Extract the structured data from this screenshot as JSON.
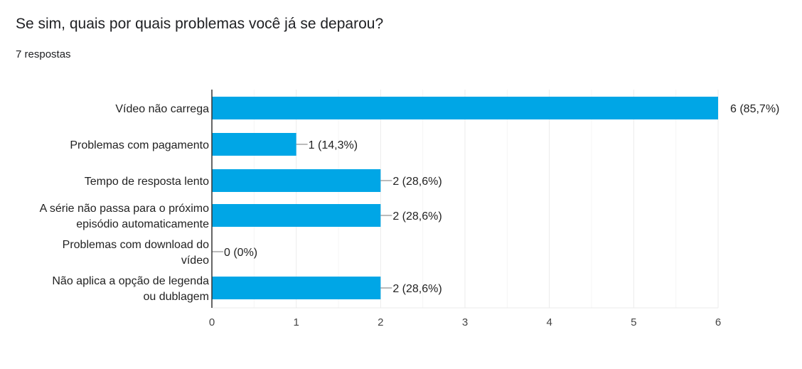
{
  "question": {
    "title": "Se sim, quais por quais problemas você já se deparou?",
    "responses": "7 respostas"
  },
  "colors": {
    "bar": "#00a6e6",
    "grid": "#ebebeb",
    "axis": "#333333",
    "leader": "#777777"
  },
  "chart_data": {
    "type": "bar",
    "orientation": "horizontal",
    "categories": [
      [
        "Vídeo não carrega"
      ],
      [
        "Problemas com pagamento"
      ],
      [
        "Tempo de resposta lento"
      ],
      [
        "A série não passa para o próximo",
        "episódio automaticamente"
      ],
      [
        "Problemas com download do",
        "vídeo"
      ],
      [
        "Não aplica a opção de legenda",
        "ou dublagem"
      ]
    ],
    "values": [
      6,
      1,
      2,
      2,
      0,
      2
    ],
    "data_labels": [
      "6 (85,7%)",
      "1 (14,3%)",
      "2 (28,6%)",
      "2 (28,6%)",
      "0 (0%)",
      "2 (28,6%)"
    ],
    "xlim": [
      0,
      6
    ],
    "xticks": [
      "0",
      "1",
      "2",
      "3",
      "4",
      "5",
      "6"
    ],
    "grid": true
  }
}
